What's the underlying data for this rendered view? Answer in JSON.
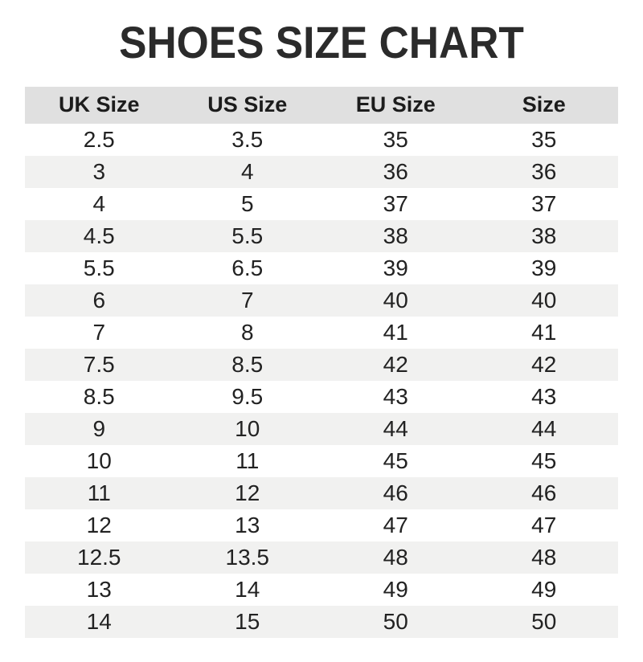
{
  "title": "SHOES SIZE CHART",
  "colors": {
    "page_bg": "#ffffff",
    "title_text": "#2b2b2b",
    "header_bg": "#e0e0e0",
    "row_alt_bg": "#f1f1f0",
    "cell_text": "#222222"
  },
  "chart_data": {
    "type": "table",
    "title": "SHOES SIZE CHART",
    "columns": [
      "UK Size",
      "US Size",
      "EU Size",
      "Size"
    ],
    "rows": [
      [
        "2.5",
        "3.5",
        "35",
        "35"
      ],
      [
        "3",
        "4",
        "36",
        "36"
      ],
      [
        "4",
        "5",
        "37",
        "37"
      ],
      [
        "4.5",
        "5.5",
        "38",
        "38"
      ],
      [
        "5.5",
        "6.5",
        "39",
        "39"
      ],
      [
        "6",
        "7",
        "40",
        "40"
      ],
      [
        "7",
        "8",
        "41",
        "41"
      ],
      [
        "7.5",
        "8.5",
        "42",
        "42"
      ],
      [
        "8.5",
        "9.5",
        "43",
        "43"
      ],
      [
        "9",
        "10",
        "44",
        "44"
      ],
      [
        "10",
        "11",
        "45",
        "45"
      ],
      [
        "11",
        "12",
        "46",
        "46"
      ],
      [
        "12",
        "13",
        "47",
        "47"
      ],
      [
        "12.5",
        "13.5",
        "48",
        "48"
      ],
      [
        "13",
        "14",
        "49",
        "49"
      ],
      [
        "14",
        "15",
        "50",
        "50"
      ]
    ],
    "layout": {
      "header_background": "gray",
      "striped_rows": true,
      "first_data_row_background": "white",
      "text_align": "center"
    }
  }
}
